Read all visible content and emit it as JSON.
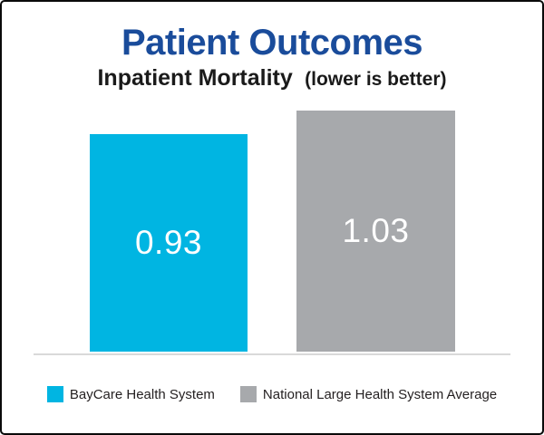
{
  "card": {
    "title": "Patient Outcomes",
    "subtitle_main": "Inpatient Mortality",
    "subtitle_note": "(lower is better)"
  },
  "chart_data": {
    "type": "bar",
    "title": "Patient Outcomes",
    "subtitle": "Inpatient Mortality (lower is better)",
    "categories": [
      "BayCare Health System",
      "National Large Health System Average"
    ],
    "values": [
      0.93,
      1.03
    ],
    "value_labels": [
      "0.93",
      "1.03"
    ],
    "bar_colors": [
      "#00B5E2",
      "#A7A9AC"
    ],
    "value_label_color": "#FFFFFF",
    "xlabel": "",
    "ylabel": "",
    "ylim": [
      0,
      1.1
    ],
    "grid": false,
    "legend_position": "bottom",
    "note": "lower is better"
  },
  "legend": {
    "items": [
      {
        "label": "BayCare Health System",
        "color": "#00B5E2"
      },
      {
        "label": "National Large Health System Average",
        "color": "#A7A9AC"
      }
    ]
  },
  "colors": {
    "title_navy": "#1A4C9B",
    "baycare_cyan": "#00B5E2",
    "national_gray": "#A7A9AC",
    "baseline_gray": "#D9D9D9",
    "border_black": "#0A0A0A"
  }
}
